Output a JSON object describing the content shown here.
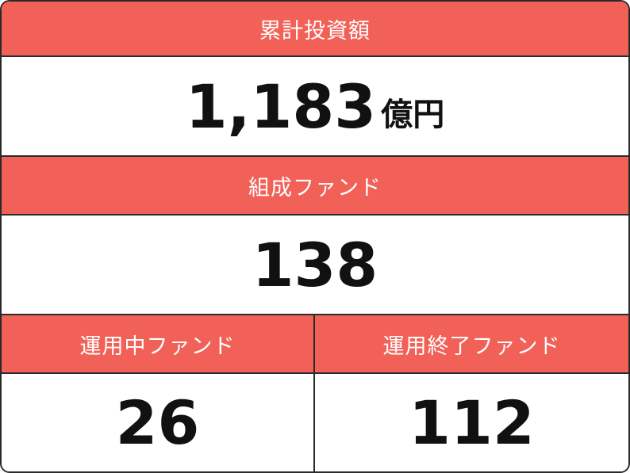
{
  "total_investment": {
    "label": "累計投資額",
    "value": "1,183",
    "unit": "億円"
  },
  "funds_formed": {
    "label": "組成ファンド",
    "value": "138"
  },
  "active_funds": {
    "label": "運用中ファンド",
    "value": "26"
  },
  "completed_funds": {
    "label": "運用終了ファンド",
    "value": "112"
  }
}
